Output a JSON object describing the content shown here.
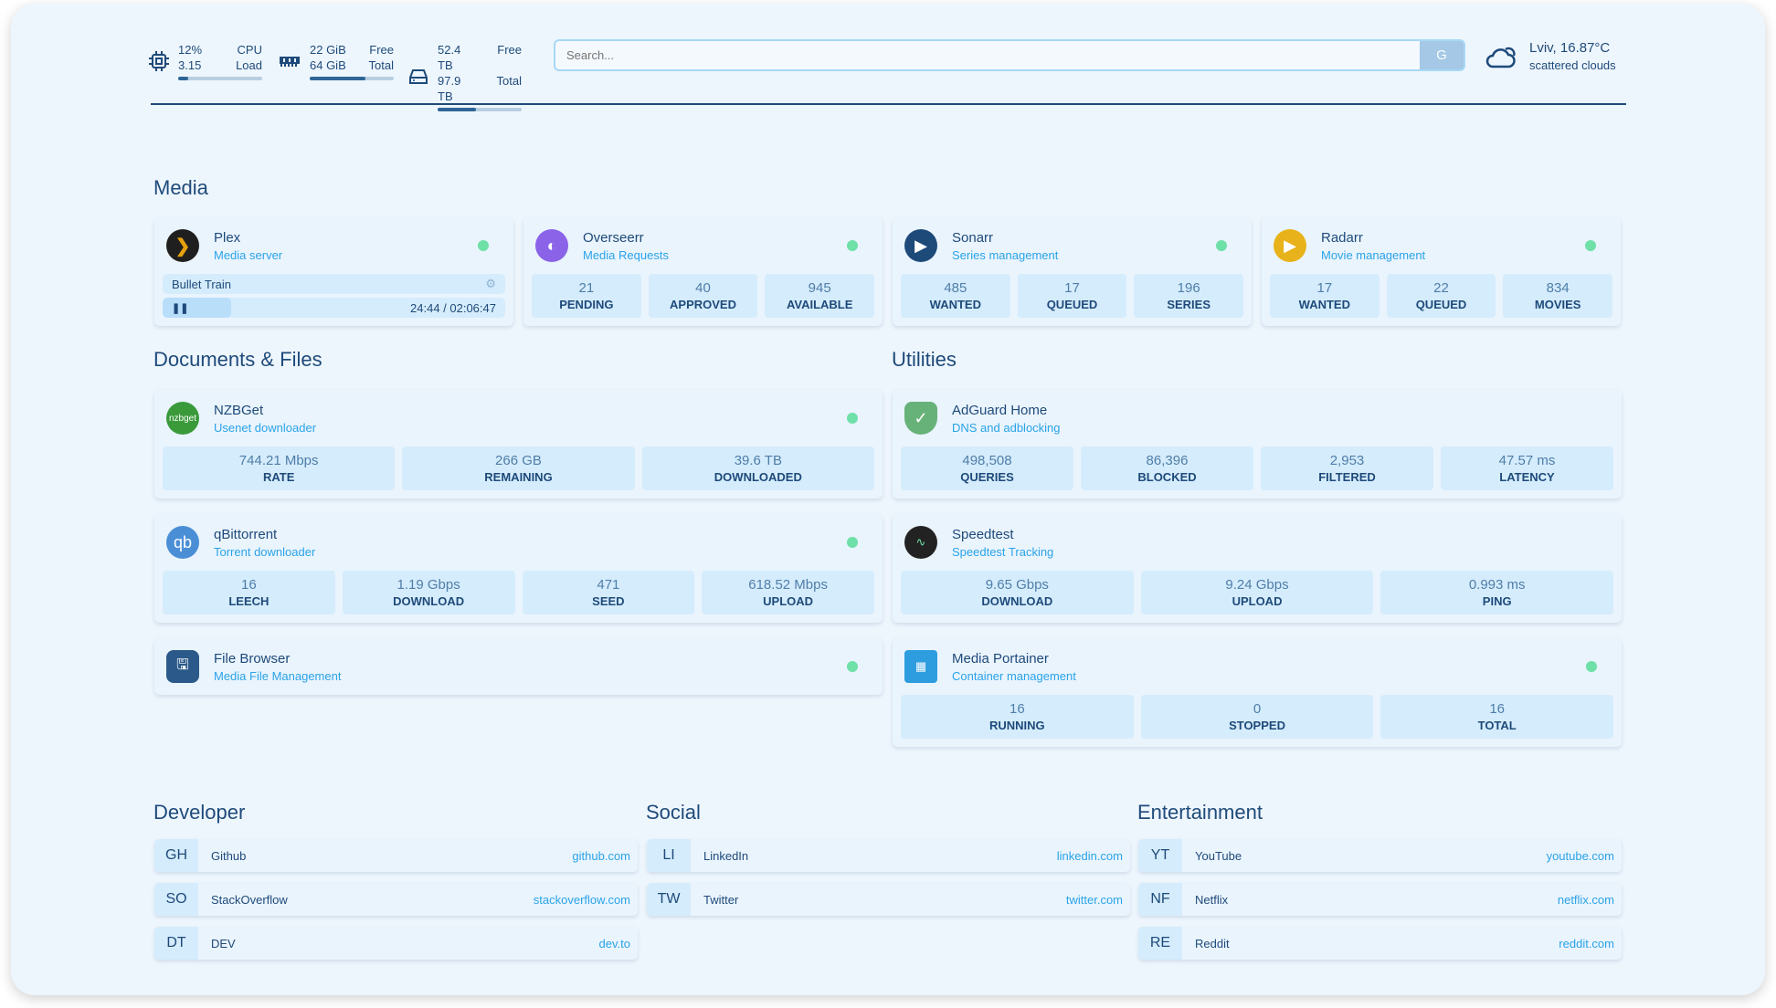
{
  "header": {
    "cpu": {
      "usage": "12%",
      "label": "CPU",
      "load": "3.15",
      "load_label": "Load",
      "percent": 12
    },
    "memory": {
      "free": "22 GiB",
      "free_label": "Free",
      "total": "64 GiB",
      "total_label": "Total",
      "used_percent": 66
    },
    "disk": {
      "free": "52.4 TB",
      "free_label": "Free",
      "total": "97.9 TB",
      "total_label": "Total",
      "used_percent": 46
    },
    "search": {
      "placeholder": "Search...",
      "button": "G"
    },
    "weather": {
      "location": "Lviv, 16.87°C",
      "description": "scattered clouds",
      "icon": "cloud-sun-icon"
    }
  },
  "colors": {
    "accent": "#2aa3e8",
    "text": "#1e4a7a",
    "status_ok": "#6ee0a8",
    "stat_bg": "#d5ecfc"
  },
  "media": {
    "title": "Media",
    "plex": {
      "name": "Plex",
      "desc": "Media server",
      "now_playing": "Bullet Train",
      "time": "24:44 / 02:06:47",
      "progress_percent": 20
    },
    "cards": [
      {
        "name": "Overseerr",
        "desc": "Media Requests",
        "stats": [
          {
            "v": "21",
            "l": "PENDING"
          },
          {
            "v": "40",
            "l": "APPROVED"
          },
          {
            "v": "945",
            "l": "AVAILABLE"
          }
        ]
      },
      {
        "name": "Sonarr",
        "desc": "Series management",
        "stats": [
          {
            "v": "485",
            "l": "WANTED"
          },
          {
            "v": "17",
            "l": "QUEUED"
          },
          {
            "v": "196",
            "l": "SERIES"
          }
        ]
      },
      {
        "name": "Radarr",
        "desc": "Movie management",
        "stats": [
          {
            "v": "17",
            "l": "WANTED"
          },
          {
            "v": "22",
            "l": "QUEUED"
          },
          {
            "v": "834",
            "l": "MOVIES"
          }
        ]
      }
    ]
  },
  "docs": {
    "title": "Documents & Files",
    "nzbget": {
      "name": "NZBGet",
      "desc": "Usenet downloader",
      "logo": "nzbget",
      "stats": [
        {
          "v": "744.21 Mbps",
          "l": "RATE"
        },
        {
          "v": "266 GB",
          "l": "REMAINING"
        },
        {
          "v": "39.6 TB",
          "l": "DOWNLOADED"
        }
      ]
    },
    "qbit": {
      "name": "qBittorrent",
      "desc": "Torrent downloader",
      "logo": "qb",
      "stats": [
        {
          "v": "16",
          "l": "LEECH"
        },
        {
          "v": "1.19 Gbps",
          "l": "DOWNLOAD"
        },
        {
          "v": "471",
          "l": "SEED"
        },
        {
          "v": "618.52 Mbps",
          "l": "UPLOAD"
        }
      ]
    },
    "filebrowser": {
      "name": "File Browser",
      "desc": "Media File Management"
    }
  },
  "utilities": {
    "title": "Utilities",
    "adguard": {
      "name": "AdGuard Home",
      "desc": "DNS and adblocking",
      "stats": [
        {
          "v": "498,508",
          "l": "QUERIES"
        },
        {
          "v": "86,396",
          "l": "BLOCKED"
        },
        {
          "v": "2,953",
          "l": "FILTERED"
        },
        {
          "v": "47.57 ms",
          "l": "LATENCY"
        }
      ]
    },
    "speedtest": {
      "name": "Speedtest",
      "desc": "Speedtest Tracking",
      "stats": [
        {
          "v": "9.65 Gbps",
          "l": "DOWNLOAD"
        },
        {
          "v": "9.24 Gbps",
          "l": "UPLOAD"
        },
        {
          "v": "0.993 ms",
          "l": "PING"
        }
      ]
    },
    "portainer": {
      "name": "Media Portainer",
      "desc": "Container management",
      "stats": [
        {
          "v": "16",
          "l": "RUNNING"
        },
        {
          "v": "0",
          "l": "STOPPED"
        },
        {
          "v": "16",
          "l": "TOTAL"
        }
      ]
    }
  },
  "bookmarks": [
    {
      "title": "Developer",
      "items": [
        {
          "ab": "GH",
          "name": "Github",
          "url": "github.com"
        },
        {
          "ab": "SO",
          "name": "StackOverflow",
          "url": "stackoverflow.com"
        },
        {
          "ab": "DT",
          "name": "DEV",
          "url": "dev.to"
        }
      ]
    },
    {
      "title": "Social",
      "items": [
        {
          "ab": "LI",
          "name": "LinkedIn",
          "url": "linkedin.com"
        },
        {
          "ab": "TW",
          "name": "Twitter",
          "url": "twitter.com"
        }
      ]
    },
    {
      "title": "Entertainment",
      "items": [
        {
          "ab": "YT",
          "name": "YouTube",
          "url": "youtube.com"
        },
        {
          "ab": "NF",
          "name": "Netflix",
          "url": "netflix.com"
        },
        {
          "ab": "RE",
          "name": "Reddit",
          "url": "reddit.com"
        }
      ]
    }
  ]
}
